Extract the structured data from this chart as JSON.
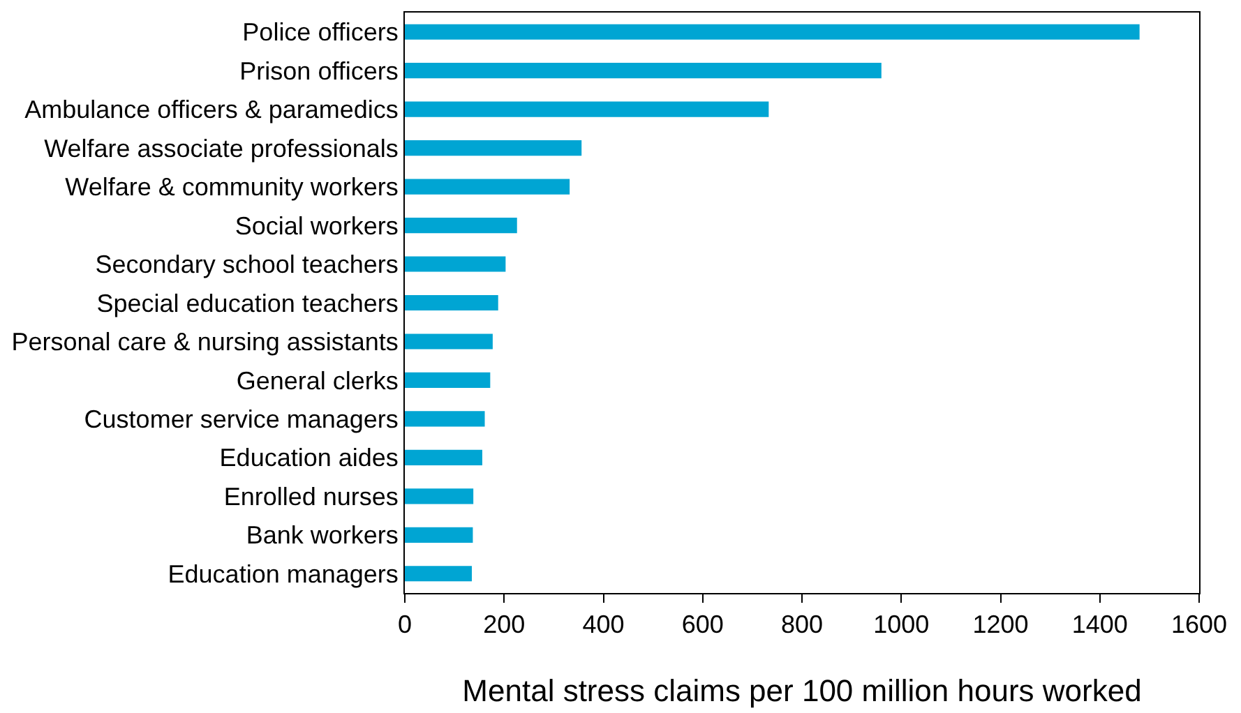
{
  "chart_data": {
    "type": "bar",
    "orientation": "horizontal",
    "xlabel": "Mental stress claims per 100 million hours worked",
    "categories": [
      "Police officers",
      "Prison officers",
      "Ambulance officers & paramedics",
      "Welfare associate professionals",
      "Welfare & community workers",
      "Social workers",
      "Secondary school teachers",
      "Special education teachers",
      "Personal care & nursing assistants",
      "General clerks",
      "Customer service managers",
      "Education aides",
      "Enrolled nurses",
      "Bank workers",
      "Education managers"
    ],
    "values": [
      1480,
      960,
      733,
      356,
      332,
      226,
      203,
      188,
      177,
      172,
      161,
      156,
      138,
      137,
      135
    ],
    "color": "#00a5d3",
    "xlim": [
      0,
      1600
    ],
    "xticks": [
      0,
      200,
      400,
      600,
      800,
      1000,
      1200,
      1400,
      1600
    ]
  }
}
